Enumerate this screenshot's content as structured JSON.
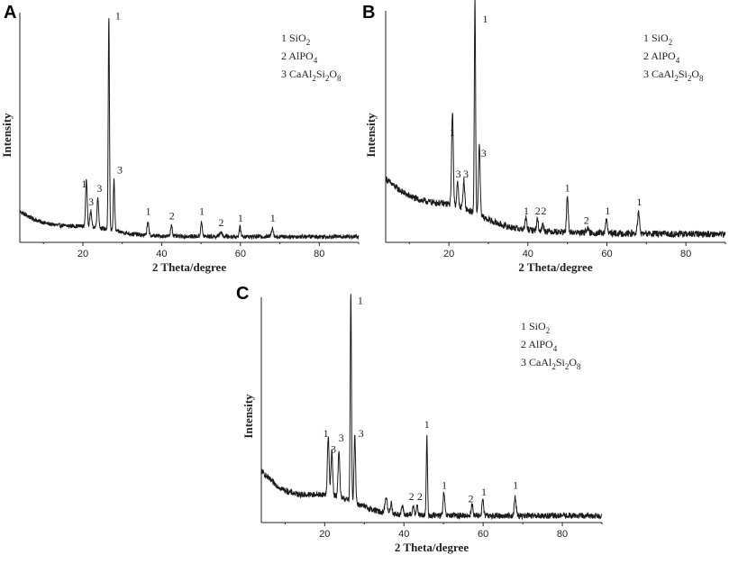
{
  "chart_data": [
    {
      "panel": "A",
      "type": "line",
      "xlabel": "2 Theta/degree",
      "ylabel": "Intensity",
      "xlim": [
        4,
        90
      ],
      "xticks": [
        20,
        40,
        60,
        80
      ],
      "grid": false,
      "legend": {
        "placement": "top-right",
        "entries": [
          {
            "num": "1",
            "parts": [
              [
                "SiO",
                ""
              ],
              [
                "2",
                "sub"
              ]
            ]
          },
          {
            "num": "2",
            "parts": [
              [
                "AlPO",
                ""
              ],
              [
                "4",
                "sub"
              ]
            ]
          },
          {
            "num": "3",
            "parts": [
              [
                "CaAl",
                ""
              ],
              [
                "2",
                "sub"
              ],
              [
                "Si",
                ""
              ],
              [
                "2",
                "sub"
              ],
              [
                "O",
                ""
              ],
              [
                "8",
                "sub"
              ]
            ]
          }
        ]
      },
      "baseline": {
        "start": 0.11,
        "decay": 0.07,
        "tau": 9,
        "floor": 0.025,
        "noise": 0.009
      },
      "peaks": [
        {
          "x": 20.9,
          "h": 0.2,
          "w": 0.3
        },
        {
          "x": 22.0,
          "h": 0.07,
          "w": 0.3
        },
        {
          "x": 23.8,
          "h": 0.13,
          "w": 0.3
        },
        {
          "x": 26.6,
          "h": 0.92,
          "w": 0.22
        },
        {
          "x": 27.9,
          "h": 0.22,
          "w": 0.25
        },
        {
          "x": 36.5,
          "h": 0.06,
          "w": 0.3
        },
        {
          "x": 42.5,
          "h": 0.05,
          "w": 0.3
        },
        {
          "x": 50.1,
          "h": 0.06,
          "w": 0.3
        },
        {
          "x": 55.0,
          "h": 0.02,
          "w": 0.4
        },
        {
          "x": 59.9,
          "h": 0.04,
          "w": 0.3
        },
        {
          "x": 68.1,
          "h": 0.04,
          "w": 0.35
        }
      ],
      "labels": [
        {
          "x": 20.3,
          "y": 0.24,
          "text": "1"
        },
        {
          "x": 22.1,
          "y": 0.16,
          "text": "3"
        },
        {
          "x": 24.2,
          "y": 0.22,
          "text": "3"
        },
        {
          "x": 28.9,
          "y": 0.97,
          "text": "1"
        },
        {
          "x": 29.4,
          "y": 0.3,
          "text": "3"
        },
        {
          "x": 36.6,
          "y": 0.12,
          "text": "1"
        },
        {
          "x": 42.6,
          "y": 0.1,
          "text": "2"
        },
        {
          "x": 50.2,
          "y": 0.12,
          "text": "1"
        },
        {
          "x": 55.1,
          "y": 0.07,
          "text": "2"
        },
        {
          "x": 60.0,
          "y": 0.09,
          "text": "1"
        },
        {
          "x": 68.2,
          "y": 0.09,
          "text": "1"
        }
      ]
    },
    {
      "panel": "B",
      "type": "line",
      "xlabel": "2 Theta/degree",
      "ylabel": "Intensity",
      "xlim": [
        4,
        90
      ],
      "xticks": [
        20,
        40,
        60,
        80
      ],
      "grid": false,
      "legend": {
        "placement": "top-right",
        "entries": [
          {
            "num": "1",
            "parts": [
              [
                "SiO",
                ""
              ],
              [
                "2",
                "sub"
              ]
            ]
          },
          {
            "num": "2",
            "parts": [
              [
                "AlPO",
                ""
              ],
              [
                "4",
                "sub"
              ]
            ]
          },
          {
            "num": "3",
            "parts": [
              [
                "CaAl",
                ""
              ],
              [
                "2",
                "sub"
              ],
              [
                "Si",
                ""
              ],
              [
                "2",
                "sub"
              ],
              [
                "O",
                ""
              ],
              [
                "8",
                "sub"
              ]
            ]
          }
        ]
      },
      "baseline": {
        "start": 0.24,
        "decay": 0.14,
        "tau": 14,
        "floor": 0.035,
        "noise": 0.014
      },
      "peaks": [
        {
          "x": 20.9,
          "h": 0.4,
          "w": 0.3
        },
        {
          "x": 22.2,
          "h": 0.1,
          "w": 0.3
        },
        {
          "x": 23.8,
          "h": 0.12,
          "w": 0.3
        },
        {
          "x": 26.6,
          "h": 0.92,
          "w": 0.22
        },
        {
          "x": 27.7,
          "h": 0.3,
          "w": 0.3
        },
        {
          "x": 39.5,
          "h": 0.05,
          "w": 0.3
        },
        {
          "x": 42.4,
          "h": 0.05,
          "w": 0.3
        },
        {
          "x": 43.8,
          "h": 0.03,
          "w": 0.3
        },
        {
          "x": 50.0,
          "h": 0.15,
          "w": 0.3
        },
        {
          "x": 55.0,
          "h": 0.02,
          "w": 0.4
        },
        {
          "x": 59.9,
          "h": 0.06,
          "w": 0.3
        },
        {
          "x": 68.0,
          "h": 0.09,
          "w": 0.35
        }
      ],
      "labels": [
        {
          "x": 20.8,
          "y": 0.46,
          "text": "1"
        },
        {
          "x": 22.4,
          "y": 0.28,
          "text": "3"
        },
        {
          "x": 24.3,
          "y": 0.28,
          "text": "3"
        },
        {
          "x": 29.2,
          "y": 0.95,
          "text": "1"
        },
        {
          "x": 28.8,
          "y": 0.37,
          "text": "3"
        },
        {
          "x": 39.6,
          "y": 0.12,
          "text": "1"
        },
        {
          "x": 42.5,
          "y": 0.12,
          "text": "2"
        },
        {
          "x": 44.0,
          "y": 0.12,
          "text": "2"
        },
        {
          "x": 50.0,
          "y": 0.22,
          "text": "1"
        },
        {
          "x": 54.8,
          "y": 0.08,
          "text": "2"
        },
        {
          "x": 60.2,
          "y": 0.12,
          "text": "1"
        },
        {
          "x": 68.2,
          "y": 0.16,
          "text": "1"
        }
      ]
    },
    {
      "panel": "C",
      "type": "line",
      "xlabel": "2 Theta/degree",
      "ylabel": "Intensity",
      "xlim": [
        4,
        90
      ],
      "xticks": [
        20,
        40,
        60,
        80
      ],
      "grid": false,
      "legend": {
        "placement": "top-right",
        "entries": [
          {
            "num": "1",
            "parts": [
              [
                "SiO",
                ""
              ],
              [
                "2",
                "sub"
              ]
            ]
          },
          {
            "num": "2",
            "parts": [
              [
                "AlPO",
                ""
              ],
              [
                "4",
                "sub"
              ]
            ]
          },
          {
            "num": "3",
            "parts": [
              [
                "CaAl",
                ""
              ],
              [
                "2",
                "sub"
              ],
              [
                "Si",
                ""
              ],
              [
                "2",
                "sub"
              ],
              [
                "O",
                ""
              ],
              [
                "8",
                "sub"
              ]
            ]
          }
        ]
      },
      "baseline": {
        "start": 0.2,
        "decay": 0.16,
        "tau": 9,
        "floor": 0.03,
        "noise": 0.013
      },
      "peaks": [
        {
          "x": 20.9,
          "h": 0.26,
          "w": 0.3
        },
        {
          "x": 21.8,
          "h": 0.2,
          "w": 0.3
        },
        {
          "x": 23.6,
          "h": 0.2,
          "w": 0.3
        },
        {
          "x": 26.6,
          "h": 0.92,
          "w": 0.22
        },
        {
          "x": 27.6,
          "h": 0.3,
          "w": 0.28
        },
        {
          "x": 35.5,
          "h": 0.07,
          "w": 0.4
        },
        {
          "x": 36.8,
          "h": 0.05,
          "w": 0.3
        },
        {
          "x": 39.6,
          "h": 0.04,
          "w": 0.3
        },
        {
          "x": 42.4,
          "h": 0.04,
          "w": 0.3
        },
        {
          "x": 43.3,
          "h": 0.04,
          "w": 0.3
        },
        {
          "x": 45.8,
          "h": 0.35,
          "w": 0.22
        },
        {
          "x": 50.1,
          "h": 0.1,
          "w": 0.3
        },
        {
          "x": 57.2,
          "h": 0.05,
          "w": 0.3
        },
        {
          "x": 59.9,
          "h": 0.07,
          "w": 0.3
        },
        {
          "x": 68.1,
          "h": 0.08,
          "w": 0.35
        }
      ],
      "labels": [
        {
          "x": 20.3,
          "y": 0.38,
          "text": "1"
        },
        {
          "x": 22.2,
          "y": 0.31,
          "text": "3"
        },
        {
          "x": 24.2,
          "y": 0.36,
          "text": "3"
        },
        {
          "x": 29.0,
          "y": 0.97,
          "text": "1"
        },
        {
          "x": 29.2,
          "y": 0.38,
          "text": "3"
        },
        {
          "x": 41.9,
          "y": 0.1,
          "text": "2"
        },
        {
          "x": 44.0,
          "y": 0.1,
          "text": "2"
        },
        {
          "x": 45.8,
          "y": 0.42,
          "text": "1"
        },
        {
          "x": 50.2,
          "y": 0.15,
          "text": "1"
        },
        {
          "x": 56.9,
          "y": 0.09,
          "text": "2"
        },
        {
          "x": 60.2,
          "y": 0.12,
          "text": "1"
        },
        {
          "x": 68.2,
          "y": 0.15,
          "text": "1"
        }
      ]
    }
  ]
}
